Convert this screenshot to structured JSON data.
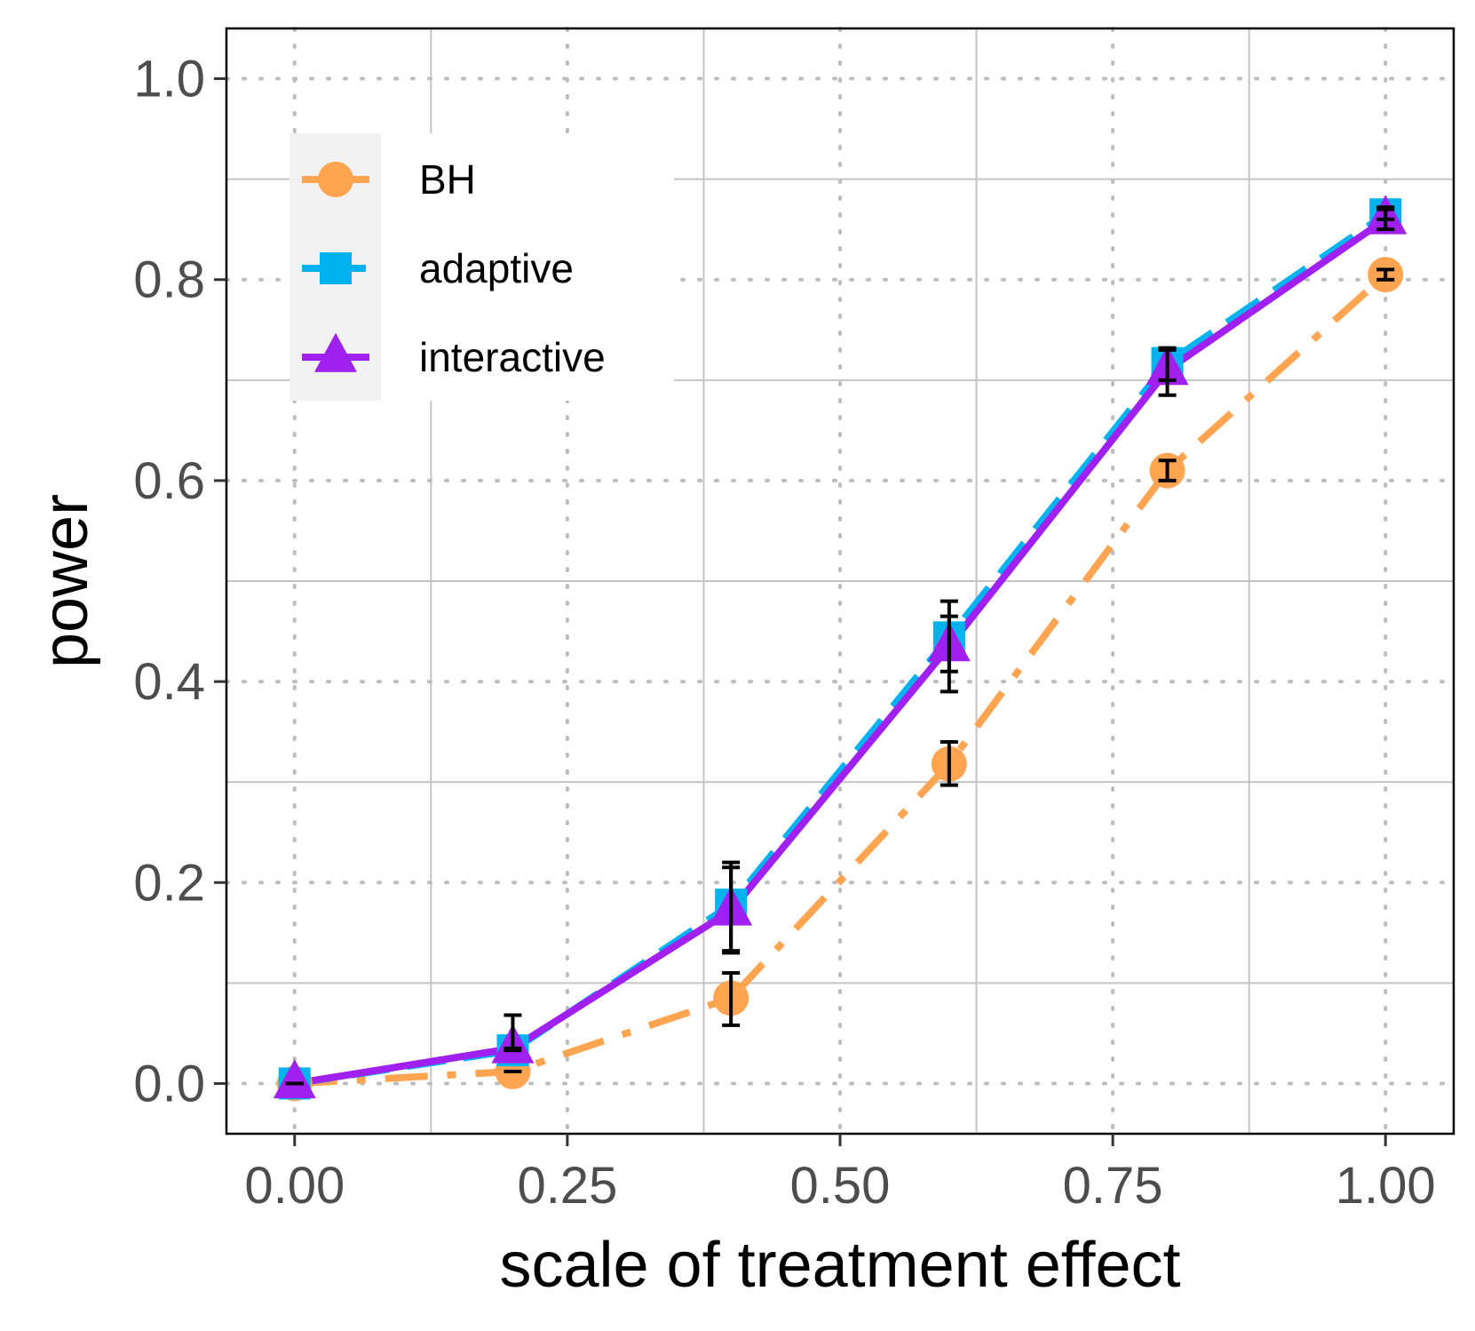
{
  "chart_data": {
    "type": "line",
    "xlabel": "scale of treatment effect",
    "ylabel": "power",
    "xlim": [
      -0.0625,
      1.0625
    ],
    "ylim": [
      -0.05,
      1.05
    ],
    "x_ticks": [
      0.0,
      0.25,
      0.5,
      0.75,
      1.0
    ],
    "x_tick_labels": [
      "0.00",
      "0.25",
      "0.50",
      "0.75",
      "1.00"
    ],
    "y_ticks": [
      0.0,
      0.2,
      0.4,
      0.6,
      0.8,
      1.0
    ],
    "y_tick_labels": [
      "0.0",
      "0.2",
      "0.4",
      "0.6",
      "0.8",
      "1.0"
    ],
    "grid": true,
    "legend_position": "top-left",
    "x": [
      0.0,
      0.2,
      0.4,
      0.6,
      0.8,
      1.0
    ],
    "series": [
      {
        "name": "BH",
        "color": "#FFA552",
        "line_style": "dashdot",
        "marker": "circle",
        "values": [
          0.0,
          0.012,
          0.085,
          0.318,
          0.61,
          0.805
        ],
        "error_low": [
          0.0,
          0.012,
          0.058,
          0.297,
          0.6,
          0.8
        ],
        "error_high": [
          0.0,
          0.012,
          0.11,
          0.34,
          0.62,
          0.81
        ]
      },
      {
        "name": "adaptive",
        "color": "#00B2EE",
        "line_style": "dashed",
        "marker": "square",
        "values": [
          0.0,
          0.033,
          0.178,
          0.444,
          0.717,
          0.865
        ],
        "error_low": [
          0.0,
          0.033,
          0.132,
          0.41,
          0.7,
          0.86
        ],
        "error_high": [
          0.0,
          0.068,
          0.22,
          0.48,
          0.732,
          0.872
        ]
      },
      {
        "name": "interactive",
        "color": "#A020F0",
        "line_style": "solid",
        "marker": "triangle",
        "values": [
          0.0,
          0.035,
          0.172,
          0.435,
          0.71,
          0.86
        ],
        "error_low": [
          0.0,
          0.035,
          0.13,
          0.39,
          0.685,
          0.85
        ],
        "error_high": [
          0.0,
          0.035,
          0.215,
          0.465,
          0.73,
          0.87
        ]
      }
    ]
  }
}
